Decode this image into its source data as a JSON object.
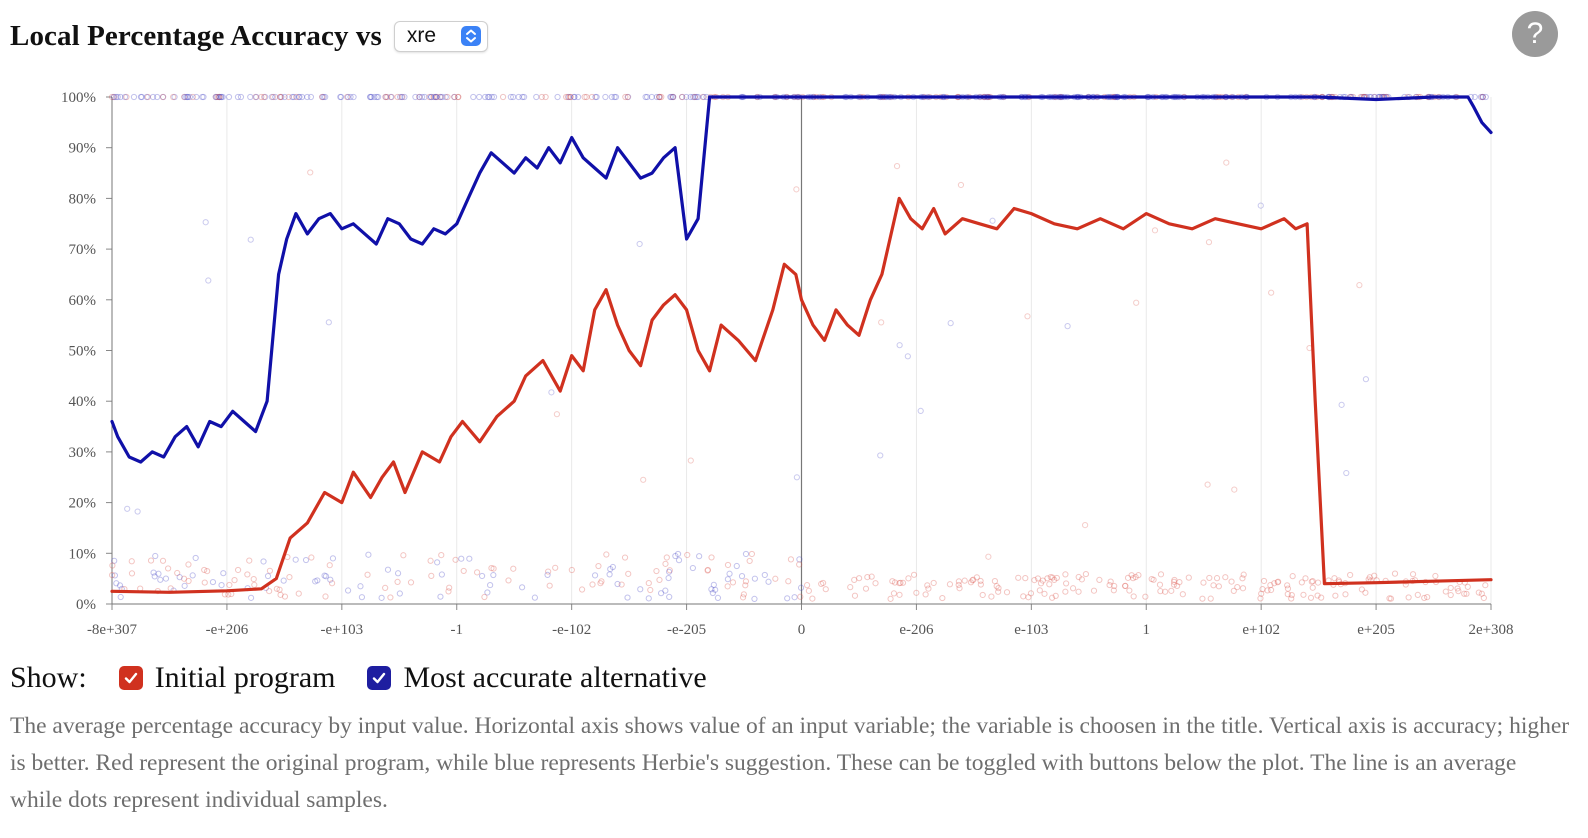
{
  "header": {
    "title": "Local Percentage Accuracy vs",
    "variable_select": {
      "selected": "xre"
    },
    "help_label": "?"
  },
  "legend": {
    "show_label": "Show:",
    "items": [
      {
        "label": "Initial program",
        "checked": true,
        "color": "#d0311f"
      },
      {
        "label": "Most accurate alternative",
        "checked": true,
        "color": "#1010a8"
      }
    ]
  },
  "description": "The average percentage accuracy by input value. Horizontal axis shows value of an input variable; the variable is choosen in the title. Vertical axis is accuracy; higher is better. Red represent the original program, while blue represents Herbie's suggestion. These can be toggled with buttons below the plot. The line is an average while dots represent individual samples.",
  "chart_data": {
    "type": "line",
    "xlabel": "",
    "ylabel": "",
    "x_ticks": [
      "-8e+307",
      "-e+206",
      "-e+103",
      "-1",
      "-e-102",
      "-e-205",
      "0",
      "e-206",
      "e-103",
      "1",
      "e+102",
      "e+205",
      "2e+308"
    ],
    "y_ticks": [
      "0%",
      "10%",
      "20%",
      "30%",
      "40%",
      "50%",
      "60%",
      "70%",
      "80%",
      "90%",
      "100%"
    ],
    "ylim": [
      0,
      100
    ],
    "xlim": [
      0,
      12
    ],
    "zero_line_x": 6,
    "series": [
      {
        "name": "Initial program",
        "color": "#d0311f",
        "x": [
          0,
          0.5,
          1,
          1.3,
          1.43,
          1.55,
          1.7,
          1.85,
          2.0,
          2.1,
          2.25,
          2.35,
          2.45,
          2.55,
          2.7,
          2.85,
          2.95,
          3.05,
          3.2,
          3.35,
          3.5,
          3.6,
          3.75,
          3.9,
          4.0,
          4.1,
          4.2,
          4.3,
          4.4,
          4.5,
          4.6,
          4.7,
          4.8,
          4.9,
          5.0,
          5.1,
          5.2,
          5.3,
          5.45,
          5.6,
          5.75,
          5.85,
          5.95,
          6.0,
          6.1,
          6.2,
          6.3,
          6.4,
          6.5,
          6.6,
          6.7,
          6.85,
          6.95,
          7.05,
          7.15,
          7.25,
          7.4,
          7.55,
          7.7,
          7.85,
          8.0,
          8.2,
          8.4,
          8.6,
          8.8,
          9.0,
          9.2,
          9.4,
          9.6,
          9.8,
          10.0,
          10.2,
          10.3,
          10.4,
          10.47,
          10.55,
          11,
          11.5,
          12
        ],
        "y": [
          2.5,
          2.3,
          2.6,
          3,
          5,
          13,
          16,
          22,
          20,
          26,
          21,
          25,
          28,
          22,
          30,
          28,
          33,
          36,
          32,
          37,
          40,
          45,
          48,
          42,
          49,
          46,
          58,
          62,
          55,
          50,
          47,
          56,
          59,
          61,
          58,
          50,
          46,
          55,
          52,
          48,
          58,
          67,
          65,
          60,
          55,
          52,
          58,
          55,
          53,
          60,
          65,
          80,
          76,
          74,
          78,
          73,
          76,
          75,
          74,
          78,
          77,
          75,
          74,
          76,
          74,
          77,
          75,
          74,
          76,
          75,
          74,
          76,
          74,
          75,
          40,
          4,
          4.2,
          4.5,
          4.8
        ]
      },
      {
        "name": "Most accurate alternative",
        "color": "#1010a8",
        "x": [
          0,
          0.05,
          0.15,
          0.25,
          0.35,
          0.45,
          0.55,
          0.65,
          0.75,
          0.85,
          0.95,
          1.05,
          1.15,
          1.25,
          1.35,
          1.45,
          1.52,
          1.6,
          1.7,
          1.8,
          1.9,
          2.0,
          2.1,
          2.2,
          2.3,
          2.4,
          2.5,
          2.6,
          2.7,
          2.8,
          2.9,
          3.0,
          3.1,
          3.2,
          3.3,
          3.4,
          3.5,
          3.6,
          3.7,
          3.8,
          3.9,
          4.0,
          4.1,
          4.2,
          4.3,
          4.4,
          4.5,
          4.6,
          4.7,
          4.8,
          4.9,
          5.0,
          5.1,
          5.2,
          5.3,
          5.4,
          5.5,
          5.6,
          5.7,
          5.8,
          5.9,
          6.0,
          6.05,
          6.1,
          6.2,
          6.5,
          7,
          8,
          9,
          10,
          10.5,
          11,
          11.5,
          11.8,
          11.85,
          11.92,
          12
        ],
        "y": [
          36,
          33,
          29,
          28,
          30,
          29,
          33,
          35,
          31,
          36,
          35,
          38,
          36,
          34,
          40,
          65,
          72,
          77,
          73,
          76,
          77,
          74,
          75,
          73,
          71,
          76,
          75,
          72,
          71,
          74,
          73,
          75,
          80,
          85,
          89,
          87,
          85,
          88,
          86,
          90,
          87,
          92,
          88,
          86,
          84,
          90,
          87,
          84,
          85,
          88,
          90,
          72,
          76,
          100,
          100,
          100,
          100,
          100,
          100,
          100,
          100,
          100,
          100,
          100,
          100,
          100,
          100,
          100,
          100,
          100,
          100,
          99.5,
          100,
          100,
          98,
          95,
          93
        ]
      }
    ]
  }
}
